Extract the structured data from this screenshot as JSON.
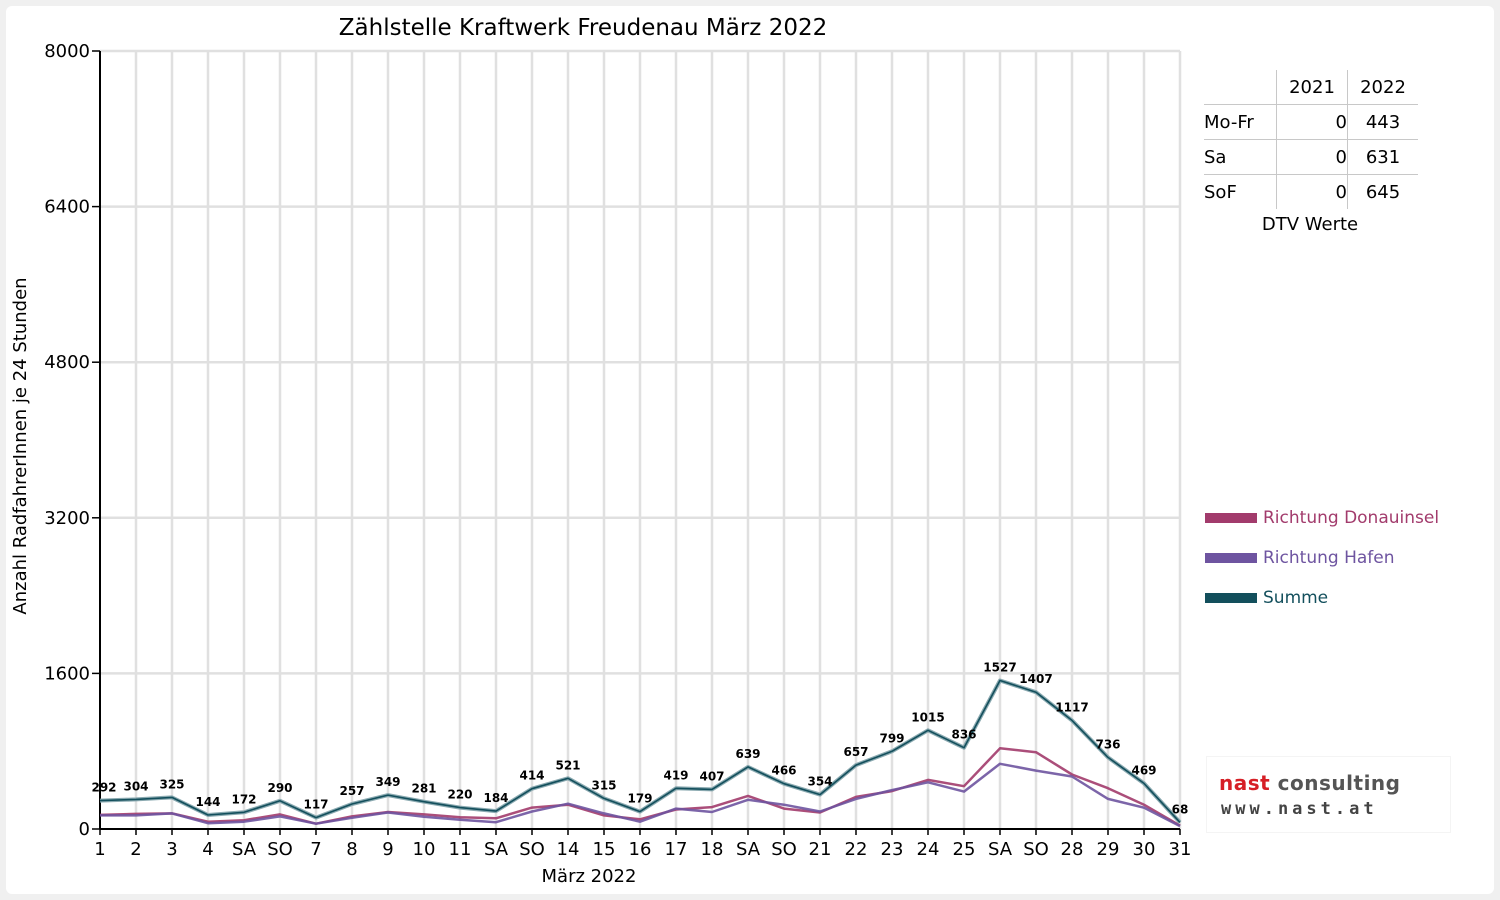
{
  "chart_data": {
    "type": "line",
    "title": "Zählstelle Kraftwerk Freudenau März 2022",
    "xlabel": "März 2022",
    "ylabel": "Anzahl RadfahrerInnen je 24 Stunden",
    "ylim": [
      0,
      8000
    ],
    "yticks": [
      "0",
      "1600",
      "3200",
      "4800",
      "6400",
      "8000"
    ],
    "grid": true,
    "legend_position": "right",
    "categories": [
      "1",
      "2",
      "3",
      "4",
      "SA",
      "SO",
      "7",
      "8",
      "9",
      "10",
      "11",
      "SA",
      "SO",
      "14",
      "15",
      "16",
      "17",
      "18",
      "SA",
      "SO",
      "21",
      "22",
      "23",
      "24",
      "25",
      "SA",
      "SO",
      "28",
      "29",
      "30",
      "31"
    ],
    "weekend_red": [
      "SO"
    ],
    "series": [
      {
        "name": "Richtung Donauinsel",
        "color": "#a23b6c",
        "values": [
          145,
          155,
          160,
          75,
          90,
          150,
          55,
          130,
          175,
          150,
          120,
          110,
          220,
          250,
          140,
          100,
          200,
          225,
          340,
          210,
          170,
          330,
          390,
          505,
          440,
          830,
          790,
          560,
          420,
          250,
          35
        ]
      },
      {
        "name": "Richtung Hafen",
        "color": "#6e54a0",
        "values": [
          140,
          140,
          160,
          60,
          75,
          130,
          55,
          115,
          170,
          125,
          95,
          70,
          180,
          260,
          160,
          75,
          210,
          175,
          300,
          250,
          180,
          310,
          400,
          480,
          385,
          670,
          600,
          540,
          310,
          220,
          30
        ]
      },
      {
        "name": "Summe",
        "color": "#134f5c",
        "values": [
          292,
          304,
          325,
          144,
          172,
          290,
          117,
          257,
          349,
          281,
          220,
          184,
          414,
          521,
          315,
          179,
          419,
          407,
          639,
          466,
          354,
          657,
          799,
          1015,
          836,
          1527,
          1407,
          1117,
          736,
          469,
          68
        ],
        "labels": [
          "292",
          "304",
          "325",
          "144",
          "172",
          "290",
          "117",
          "257",
          "349",
          "281",
          "220",
          "184",
          "414",
          "521",
          "315",
          "179",
          "419",
          "407",
          "639",
          "466",
          "354",
          "657",
          "799",
          "1015",
          "836",
          "1527",
          "1407",
          "1117",
          "736",
          "469",
          "68"
        ]
      }
    ]
  },
  "dtv": {
    "caption": "DTV Werte",
    "headers": [
      "",
      "2021",
      "2022"
    ],
    "rows": [
      {
        "label": "Mo-Fr",
        "y2021": "0",
        "y2022": "443"
      },
      {
        "label": "Sa",
        "y2021": "0",
        "y2022": "631"
      },
      {
        "label": "SoF",
        "y2021": "0",
        "y2022": "645"
      }
    ]
  },
  "logo": {
    "line1_a": "nast",
    "line1_b": "consulting",
    "line2": "www.nast.at"
  }
}
